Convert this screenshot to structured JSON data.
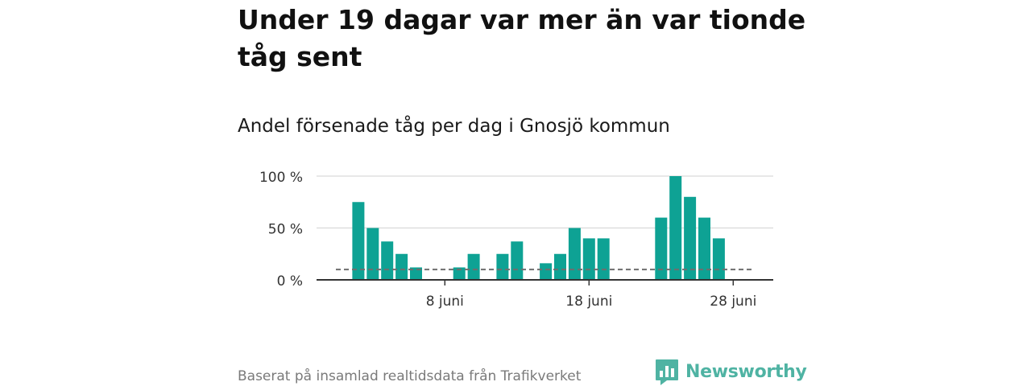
{
  "title": "Under 19 dagar var mer än var tionde tåg sent",
  "subtitle": "Andel försenade tåg per dag i Gnosjö kommun",
  "footer": "Baserat på insamlad realtidsdata från Trafikverket",
  "logo": {
    "text": "Newsworthy",
    "icon": "bar-chart-speech-bubble-icon",
    "color": "#4fb3a3"
  },
  "colors": {
    "bar": "#0ea294",
    "reference_line": "#6e6e6e",
    "grid": "#d9d9d9",
    "axis": "#333333"
  },
  "chart_data": {
    "type": "bar",
    "title": "Andel försenade tåg per dag i Gnosjö kommun",
    "xlabel": "",
    "ylabel": "",
    "x_unit": "dag i juni",
    "x_range": [
      1,
      30
    ],
    "x_ticks": [
      {
        "x": 8,
        "label": "8 juni"
      },
      {
        "x": 18,
        "label": "18 juni"
      },
      {
        "x": 28,
        "label": "28 juni"
      }
    ],
    "y_ticks": [
      {
        "y": 0,
        "label": "0 %"
      },
      {
        "y": 50,
        "label": "50 %"
      },
      {
        "y": 100,
        "label": "100 %"
      }
    ],
    "ylim": [
      0,
      100
    ],
    "grid": true,
    "reference_line": {
      "y": 10,
      "style": "dashed"
    },
    "days": [
      2,
      3,
      4,
      5,
      6,
      9,
      10,
      12,
      13,
      15,
      16,
      17,
      18,
      19,
      23,
      24,
      25,
      26,
      27
    ],
    "values": [
      75,
      50,
      37,
      25,
      12,
      12,
      25,
      25,
      37,
      16,
      25,
      50,
      40,
      40,
      60,
      100,
      80,
      60,
      40
    ]
  }
}
